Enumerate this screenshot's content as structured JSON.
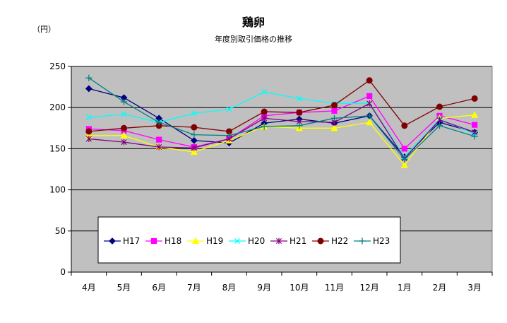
{
  "chart_data": {
    "type": "line",
    "title": "鶏卵",
    "subtitle": "年度別取引価格の推移",
    "ylabel": "（円）",
    "ylim": [
      0,
      250
    ],
    "yticks": [
      0,
      50,
      100,
      150,
      200,
      250
    ],
    "grid": true,
    "legend": "inside-bottom",
    "categories": [
      "4月",
      "5月",
      "6月",
      "7月",
      "8月",
      "9月",
      "10月",
      "11月",
      "12月",
      "1月",
      "2月",
      "3月"
    ],
    "series": [
      {
        "name": "H17",
        "color": "#000080",
        "marker": "diamond",
        "values": [
          223,
          212,
          187,
          160,
          157,
          181,
          186,
          181,
          190,
          140,
          182,
          170
        ]
      },
      {
        "name": "H18",
        "color": "#ff00ff",
        "marker": "square",
        "values": [
          174,
          172,
          161,
          152,
          162,
          190,
          194,
          196,
          214,
          150,
          190,
          179
        ]
      },
      {
        "name": "H19",
        "color": "#ffff00",
        "marker": "triangle",
        "values": [
          166,
          166,
          152,
          146,
          160,
          177,
          175,
          175,
          182,
          130,
          187,
          191
        ]
      },
      {
        "name": "H20",
        "color": "#00ffff",
        "marker": "x",
        "values": [
          188,
          192,
          182,
          193,
          198,
          219,
          211,
          205,
          205,
          140,
          186,
          168
        ]
      },
      {
        "name": "H21",
        "color": "#800080",
        "marker": "asterisk",
        "values": [
          162,
          158,
          152,
          151,
          162,
          187,
          183,
          182,
          205,
          138,
          185,
          170
        ]
      },
      {
        "name": "H22",
        "color": "#800000",
        "marker": "circle",
        "values": [
          171,
          175,
          178,
          176,
          171,
          195,
          194,
          203,
          233,
          178,
          201,
          211
        ]
      },
      {
        "name": "H23",
        "color": "#008080",
        "marker": "plus",
        "values": [
          236,
          207,
          182,
          167,
          166,
          177,
          178,
          187,
          190,
          137,
          178,
          165
        ]
      }
    ]
  }
}
